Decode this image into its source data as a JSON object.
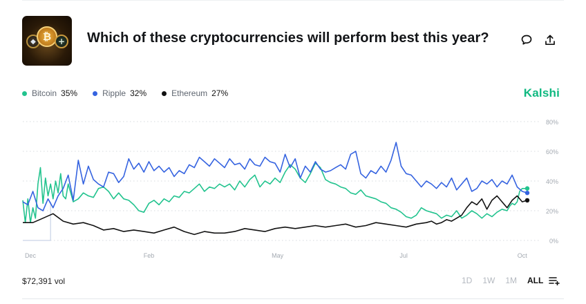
{
  "header": {
    "title": "Which of these cryptocurrencies will perform best this year?"
  },
  "brand": "Kalshi",
  "legend": [
    {
      "name": "Bitcoin",
      "value": "35%",
      "color": "#22c38e"
    },
    {
      "name": "Ripple",
      "value": "32%",
      "color": "#3563e0"
    },
    {
      "name": "Ethereum",
      "value": "27%",
      "color": "#111111"
    }
  ],
  "footer": {
    "volume": "$72,391 vol",
    "ranges": [
      "1D",
      "1W",
      "1M",
      "ALL"
    ],
    "active_range": "ALL"
  },
  "icons": {
    "comment": "comment-icon",
    "share": "share-icon",
    "thumbnail": "crypto-coins-thumbnail",
    "settings": "chart-settings-icon"
  },
  "chart_data": {
    "type": "line",
    "x_labels": [
      "Dec",
      "Feb",
      "May",
      "Jul",
      "Oct"
    ],
    "y_ticks": [
      "0%",
      "20%",
      "40%",
      "60%",
      "80%"
    ],
    "ylim": [
      0,
      80
    ],
    "grid": "horizontal dotted",
    "series": [
      {
        "name": "Bitcoin",
        "color": "#22c38e",
        "end_value": 35,
        "x": [
          0,
          0.005,
          0.01,
          0.015,
          0.02,
          0.025,
          0.03,
          0.035,
          0.04,
          0.045,
          0.05,
          0.055,
          0.06,
          0.065,
          0.07,
          0.075,
          0.08,
          0.085,
          0.09,
          0.1,
          0.11,
          0.12,
          0.13,
          0.14,
          0.15,
          0.16,
          0.17,
          0.18,
          0.19,
          0.2,
          0.21,
          0.22,
          0.23,
          0.24,
          0.25,
          0.26,
          0.27,
          0.28,
          0.29,
          0.3,
          0.31,
          0.32,
          0.33,
          0.34,
          0.35,
          0.36,
          0.37,
          0.38,
          0.39,
          0.4,
          0.41,
          0.42,
          0.43,
          0.44,
          0.45,
          0.46,
          0.47,
          0.48,
          0.49,
          0.5,
          0.51,
          0.52,
          0.53,
          0.54,
          0.55,
          0.56,
          0.57,
          0.58,
          0.59,
          0.6,
          0.61,
          0.62,
          0.63,
          0.64,
          0.65,
          0.66,
          0.67,
          0.68,
          0.69,
          0.7,
          0.71,
          0.72,
          0.73,
          0.74,
          0.75,
          0.76,
          0.77,
          0.78,
          0.79,
          0.8,
          0.81,
          0.82,
          0.83,
          0.84,
          0.85,
          0.86,
          0.87,
          0.88,
          0.89,
          0.9,
          0.91,
          0.92,
          0.93,
          0.94,
          0.95,
          0.96,
          0.965,
          0.97,
          0.975,
          0.98,
          0.985,
          0.99,
          1.0
        ],
        "values": [
          27,
          12,
          28,
          12,
          22,
          15,
          38,
          49,
          25,
          42,
          30,
          38,
          28,
          40,
          32,
          45,
          30,
          28,
          38,
          26,
          28,
          32,
          30,
          29,
          35,
          36,
          33,
          28,
          32,
          28,
          27,
          24,
          20,
          19,
          25,
          27,
          24,
          28,
          26,
          30,
          29,
          33,
          32,
          35,
          38,
          33,
          36,
          35,
          38,
          36,
          38,
          34,
          40,
          36,
          41,
          44,
          36,
          40,
          38,
          42,
          39,
          46,
          51,
          48,
          42,
          39,
          45,
          52,
          49,
          41,
          39,
          38,
          36,
          35,
          32,
          31,
          34,
          30,
          29,
          28,
          26,
          25,
          22,
          21,
          19,
          16,
          15,
          17,
          22,
          20,
          19,
          18,
          15,
          17,
          16,
          20,
          15,
          17,
          20,
          18,
          15,
          18,
          16,
          19,
          21,
          20,
          23,
          25,
          24,
          26,
          33,
          35,
          35
        ]
      },
      {
        "name": "Ripple",
        "color": "#3563e0",
        "end_value": 32,
        "x": [
          0,
          0.01,
          0.02,
          0.03,
          0.04,
          0.05,
          0.06,
          0.07,
          0.08,
          0.09,
          0.1,
          0.11,
          0.12,
          0.13,
          0.14,
          0.15,
          0.16,
          0.17,
          0.18,
          0.19,
          0.2,
          0.21,
          0.22,
          0.23,
          0.24,
          0.25,
          0.26,
          0.27,
          0.28,
          0.29,
          0.3,
          0.31,
          0.32,
          0.33,
          0.34,
          0.35,
          0.36,
          0.37,
          0.38,
          0.39,
          0.4,
          0.41,
          0.42,
          0.43,
          0.44,
          0.45,
          0.46,
          0.47,
          0.48,
          0.49,
          0.5,
          0.51,
          0.52,
          0.53,
          0.54,
          0.55,
          0.56,
          0.57,
          0.58,
          0.59,
          0.6,
          0.61,
          0.62,
          0.63,
          0.64,
          0.65,
          0.66,
          0.67,
          0.68,
          0.69,
          0.7,
          0.71,
          0.72,
          0.73,
          0.74,
          0.75,
          0.76,
          0.77,
          0.78,
          0.79,
          0.8,
          0.81,
          0.82,
          0.83,
          0.84,
          0.85,
          0.86,
          0.87,
          0.88,
          0.89,
          0.9,
          0.91,
          0.92,
          0.93,
          0.94,
          0.95,
          0.96,
          0.97,
          0.98,
          0.99,
          1.0
        ],
        "values": [
          26,
          24,
          33,
          22,
          20,
          28,
          22,
          30,
          35,
          44,
          27,
          54,
          38,
          50,
          41,
          38,
          36,
          46,
          45,
          39,
          43,
          55,
          48,
          52,
          46,
          53,
          47,
          50,
          46,
          49,
          43,
          47,
          45,
          51,
          49,
          56,
          53,
          50,
          55,
          52,
          49,
          55,
          51,
          52,
          48,
          55,
          51,
          50,
          56,
          53,
          52,
          46,
          58,
          49,
          55,
          42,
          50,
          46,
          53,
          48,
          46,
          47,
          49,
          51,
          48,
          58,
          60,
          45,
          42,
          47,
          45,
          50,
          46,
          54,
          66,
          50,
          45,
          44,
          40,
          36,
          40,
          38,
          35,
          39,
          36,
          42,
          34,
          38,
          42,
          33,
          35,
          40,
          38,
          41,
          36,
          40,
          38,
          44,
          36,
          33,
          32
        ]
      },
      {
        "name": "Ethereum",
        "color": "#111111",
        "end_value": 27,
        "x": [
          0,
          0.02,
          0.04,
          0.06,
          0.08,
          0.1,
          0.12,
          0.14,
          0.16,
          0.18,
          0.2,
          0.22,
          0.24,
          0.26,
          0.28,
          0.3,
          0.32,
          0.34,
          0.36,
          0.38,
          0.4,
          0.42,
          0.44,
          0.46,
          0.48,
          0.5,
          0.52,
          0.54,
          0.56,
          0.58,
          0.6,
          0.62,
          0.64,
          0.66,
          0.68,
          0.7,
          0.72,
          0.74,
          0.76,
          0.78,
          0.8,
          0.81,
          0.82,
          0.83,
          0.84,
          0.85,
          0.86,
          0.87,
          0.88,
          0.89,
          0.9,
          0.91,
          0.92,
          0.93,
          0.94,
          0.95,
          0.96,
          0.97,
          0.98,
          0.99,
          1.0
        ],
        "values": [
          12,
          12,
          15,
          18,
          13,
          11,
          12,
          10,
          7,
          8,
          6,
          7,
          6,
          5,
          7,
          9,
          6,
          4,
          6,
          5,
          5,
          6,
          8,
          7,
          6,
          8,
          9,
          8,
          9,
          10,
          9,
          10,
          11,
          9,
          10,
          12,
          11,
          10,
          9,
          11,
          12,
          13,
          11,
          12,
          14,
          13,
          15,
          17,
          22,
          26,
          24,
          28,
          21,
          27,
          30,
          26,
          22,
          27,
          30,
          26,
          27
        ]
      }
    ]
  }
}
